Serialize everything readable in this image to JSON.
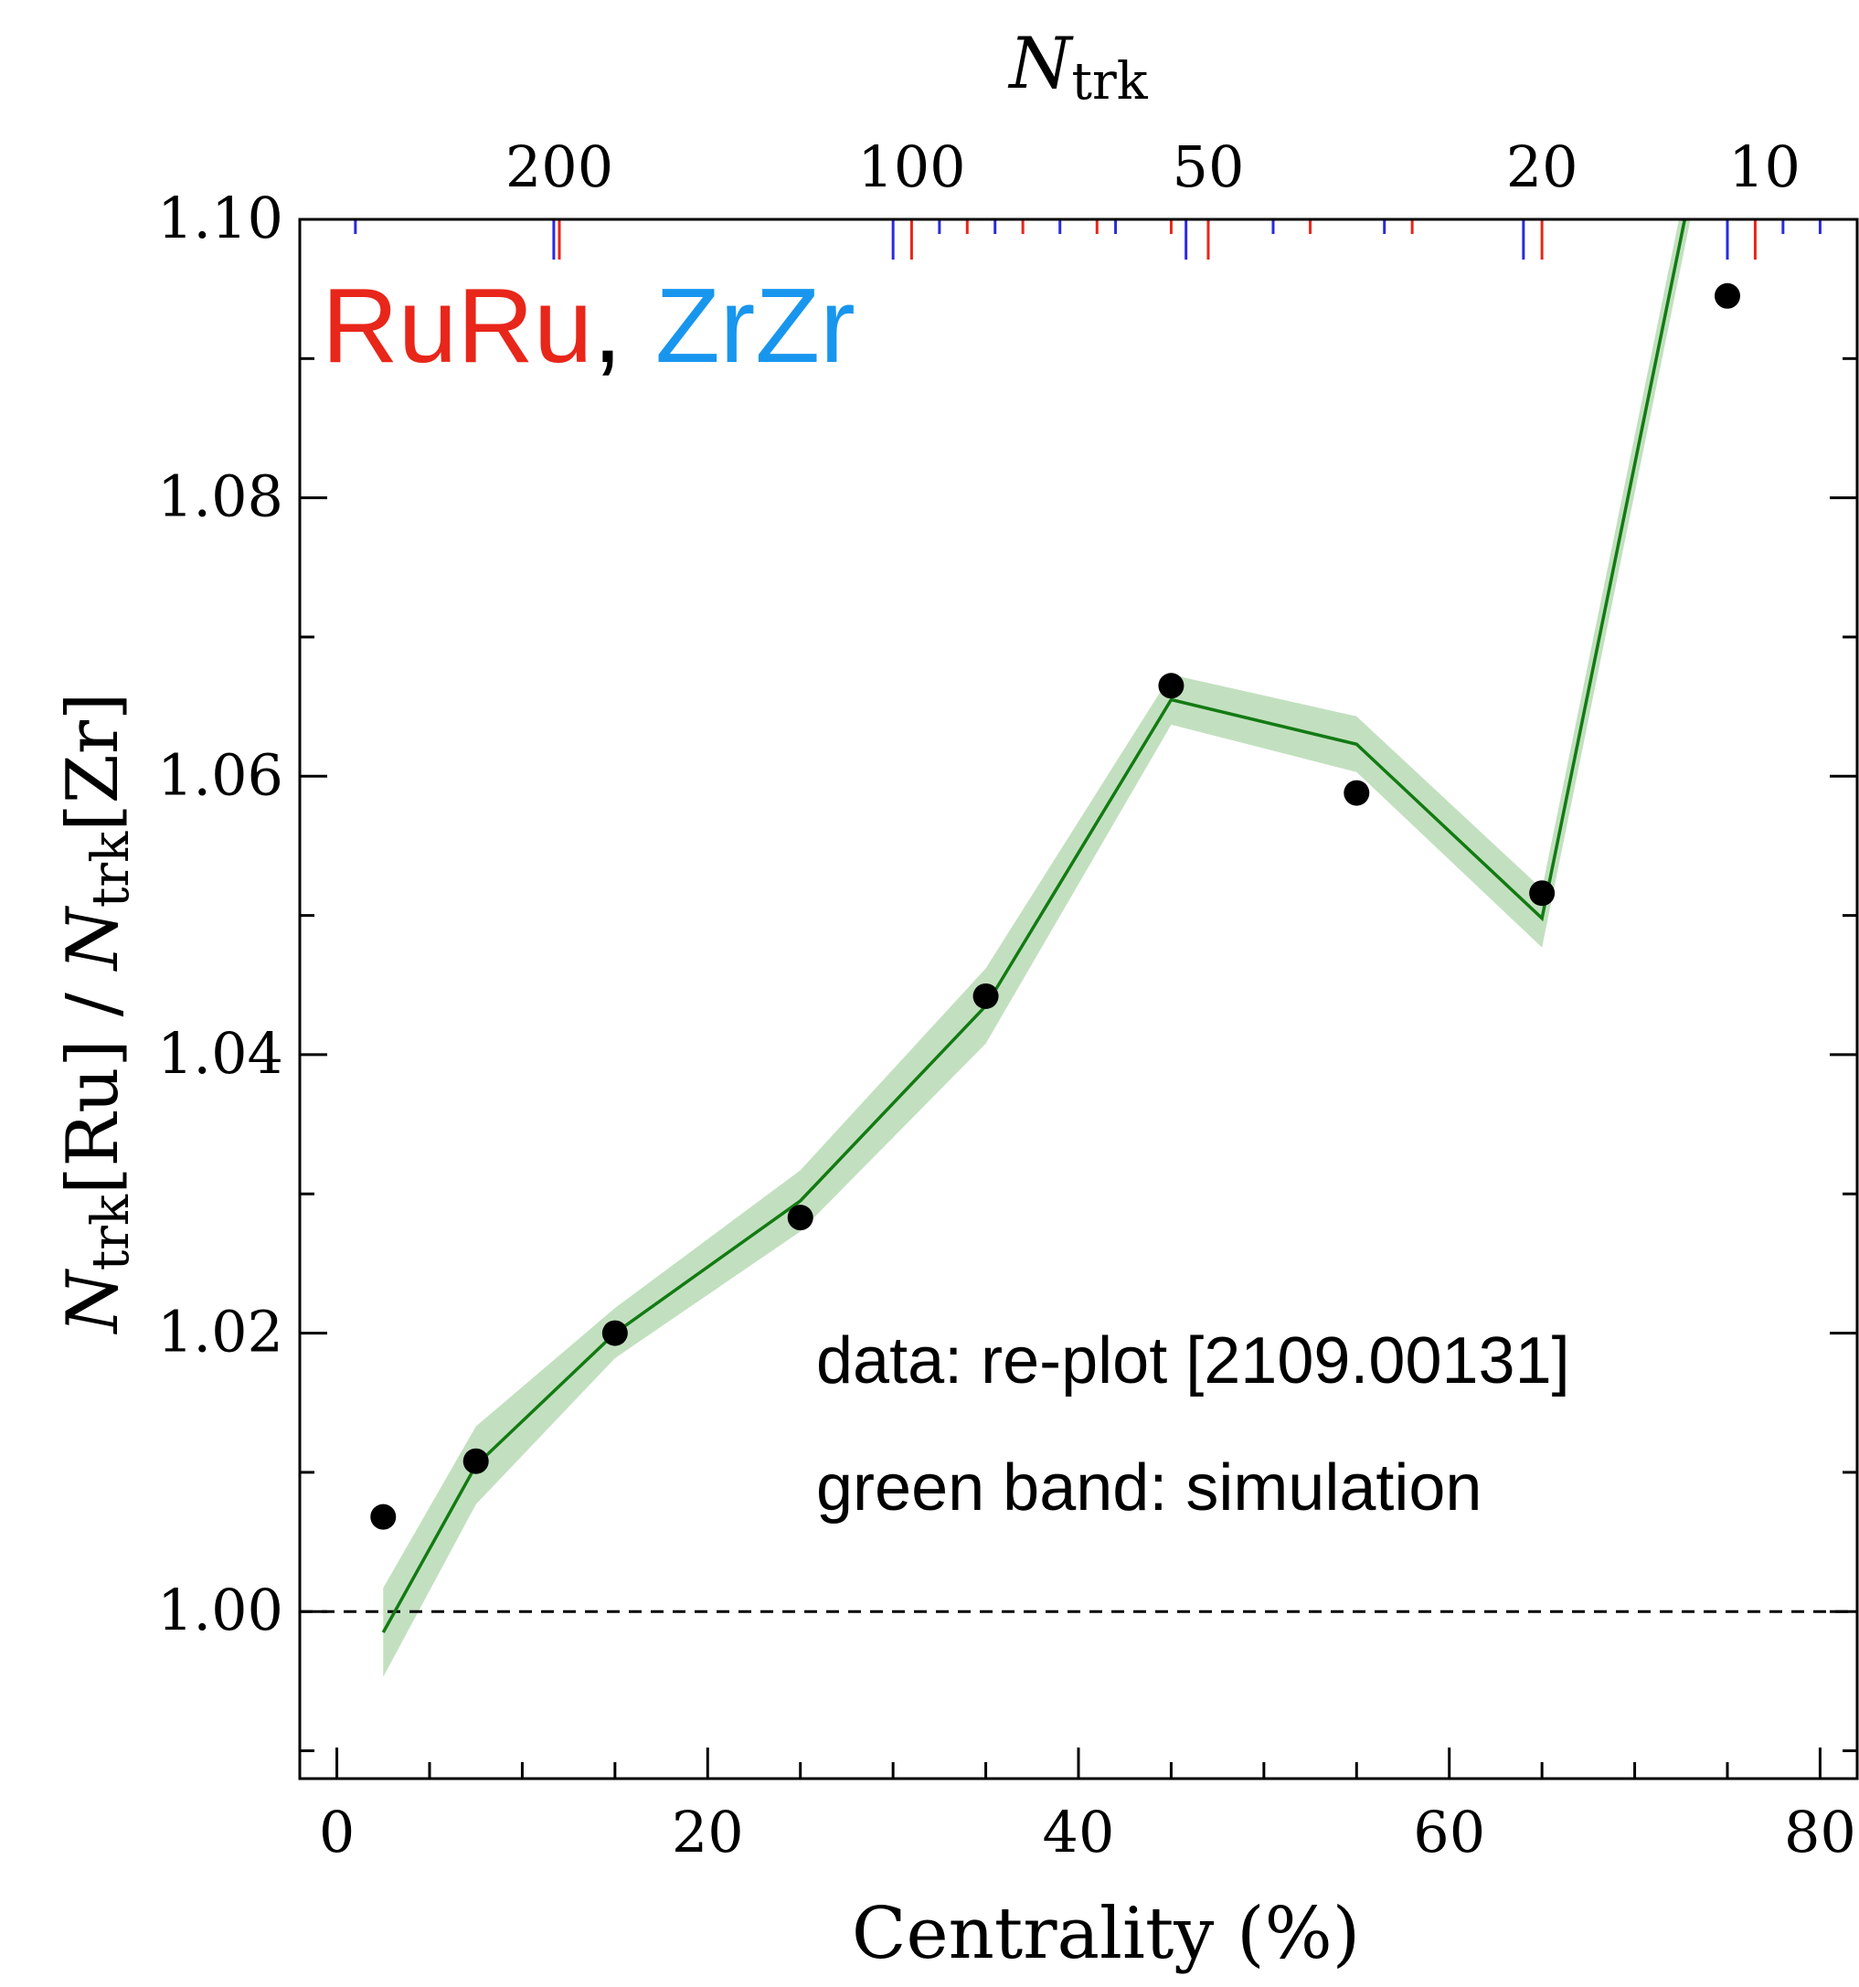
{
  "chart_data": {
    "type": "line",
    "xlabel": "Centrality (%)",
    "ylabel_parts": {
      "n1": "N",
      "sub1": "trk",
      "mid": "[Ru] / ",
      "n2": "N",
      "sub2": "trk",
      "end": "[Zr]"
    },
    "top_xlabel": {
      "n": "N",
      "sub": "trk"
    },
    "xlim": [
      -2,
      82
    ],
    "ylim": [
      0.988,
      1.1
    ],
    "x_ticks": [
      0,
      20,
      40,
      60,
      80
    ],
    "x_tick_labels": [
      "0",
      "20",
      "40",
      "60",
      "80"
    ],
    "y_ticks": [
      1.0,
      1.02,
      1.04,
      1.06,
      1.08,
      1.1
    ],
    "y_tick_labels": [
      "1.00",
      "1.02",
      "1.04",
      "1.06",
      "1.08",
      "1.10"
    ],
    "top_ticks": [
      {
        "label": "200",
        "centrality": 12.0
      },
      {
        "label": "100",
        "centrality": 31.0
      },
      {
        "label": "50",
        "centrality": 47.0
      },
      {
        "label": "20",
        "centrality": 65.0
      },
      {
        "label": "10",
        "centrality": 77.0
      }
    ],
    "ru_markers": [
      {
        "centrality": 12.0,
        "major": true
      },
      {
        "centrality": 31.0,
        "major": true
      },
      {
        "centrality": 34.0,
        "major": false
      },
      {
        "centrality": 37.0,
        "major": false
      },
      {
        "centrality": 41.0,
        "major": false
      },
      {
        "centrality": 45.0,
        "major": false
      },
      {
        "centrality": 47.0,
        "major": true
      },
      {
        "centrality": 52.5,
        "major": false
      },
      {
        "centrality": 58.0,
        "major": false
      },
      {
        "centrality": 65.0,
        "major": true
      },
      {
        "centrality": 76.5,
        "major": true
      },
      {
        "centrality": 82.0,
        "major": false
      }
    ],
    "zr_markers": [
      {
        "centrality": 1.0,
        "major": false
      },
      {
        "centrality": 11.7,
        "major": true
      },
      {
        "centrality": 30.0,
        "major": true
      },
      {
        "centrality": 32.5,
        "major": false
      },
      {
        "centrality": 35.5,
        "major": false
      },
      {
        "centrality": 39.0,
        "major": false
      },
      {
        "centrality": 42.0,
        "major": false
      },
      {
        "centrality": 45.8,
        "major": true
      },
      {
        "centrality": 50.5,
        "major": false
      },
      {
        "centrality": 56.5,
        "major": false
      },
      {
        "centrality": 64.0,
        "major": true
      },
      {
        "centrality": 75.0,
        "major": true
      },
      {
        "centrality": 78.0,
        "major": false
      },
      {
        "centrality": 80.0,
        "major": false
      }
    ],
    "series": [
      {
        "kind": "points",
        "x": [
          2.5,
          7.5,
          15,
          25,
          35,
          45,
          55,
          65,
          75
        ],
        "y": [
          1.0068,
          1.0108,
          1.02,
          1.0283,
          1.0442,
          1.0665,
          1.0588,
          1.0516,
          1.0945
        ]
      },
      {
        "kind": "simulation",
        "x": [
          2.5,
          7.5,
          15,
          25,
          35,
          45,
          55,
          65,
          75
        ],
        "y": [
          0.9985,
          1.0105,
          1.02,
          1.0295,
          1.0435,
          1.0655,
          1.0623,
          1.0498,
          1.115
        ],
        "band": [
          0.0032,
          0.0028,
          0.0018,
          0.0022,
          0.0027,
          0.0018,
          0.002,
          0.0021,
          0.002
        ]
      }
    ],
    "reference_line": 1.0,
    "legend": {
      "ru": "RuRu",
      "sep": ",",
      "zr": "ZrZr"
    },
    "annotations": [
      "data: re-plot [2109.00131]",
      "green band: simulation"
    ],
    "colors": {
      "ru": "#e8261a",
      "zr": "#1896ee",
      "zr_tick": "#2a2adf",
      "line": "#137a13",
      "band": "#b7dbb4",
      "points": "#000000"
    }
  }
}
